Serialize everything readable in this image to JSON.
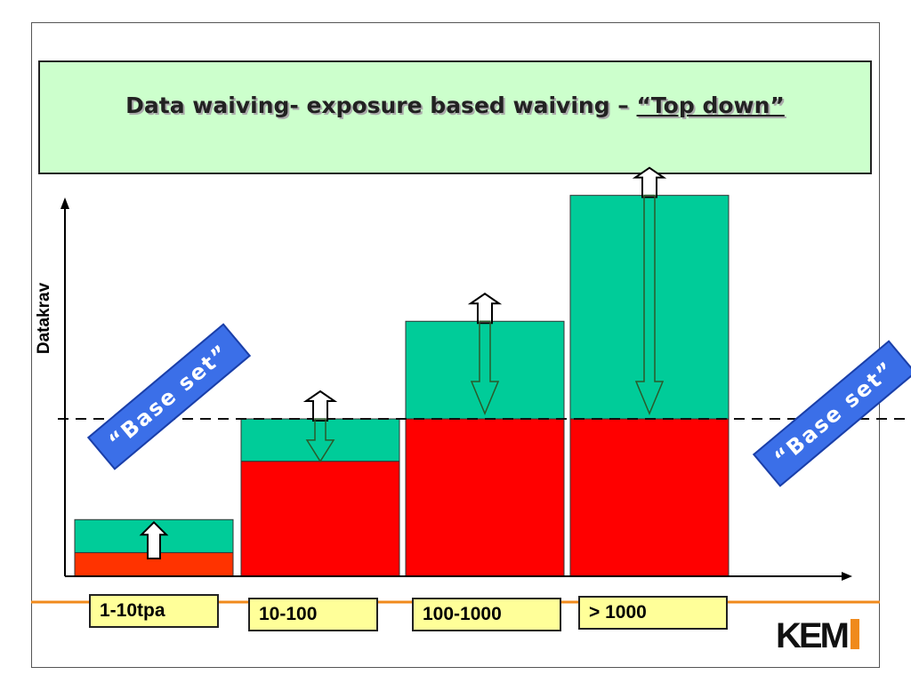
{
  "title": {
    "text": "Data waiving- exposure based waiving – ",
    "emphasis": "“Top down”"
  },
  "y_axis_label": "Datakrav",
  "badges": [
    {
      "text": "“Base set”"
    },
    {
      "text": "“Base set”"
    }
  ],
  "tonnage_bands": [
    "1-10tpa",
    "10-100",
    "100-1000",
    "> 1000"
  ],
  "bars": [
    {
      "band": "1-10tpa",
      "base_level": 0.15,
      "total_level": 0.36,
      "arrow": "up"
    },
    {
      "band": "10-100",
      "base_level": 0.73,
      "total_level": 1.0,
      "arrow": "up-down"
    },
    {
      "band": "100-1000",
      "base_level": 1.0,
      "total_level": 1.62,
      "arrow": "up-down"
    },
    {
      "band": "> 1000",
      "base_level": 1.0,
      "total_level": 2.42,
      "arrow": "up-down"
    }
  ],
  "colors": {
    "title_bg": "#ccffcc",
    "extra_requirements": "#00cc99",
    "base_requirements": "#ff0000",
    "base_requirements_low": "#ff3300",
    "label_bg": "#ffff99",
    "badge_bg": "#3b6fe8",
    "rule_line": "#f08a1c"
  },
  "logo": {
    "text": "KEM"
  }
}
